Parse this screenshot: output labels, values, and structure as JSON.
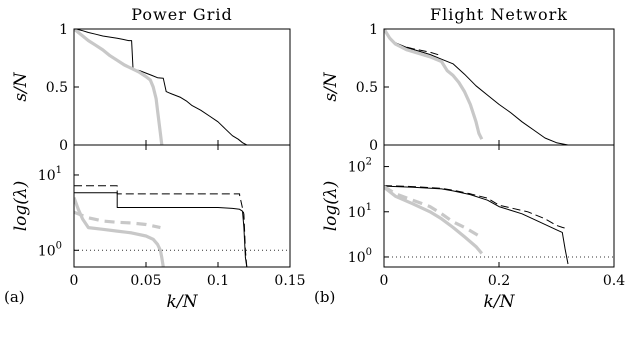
{
  "chart_data": [
    {
      "panel": "(a)",
      "title": "Power Grid",
      "xlabel": "k/N",
      "xlim": [
        0,
        0.15
      ],
      "xticks": [
        "0",
        "0.05",
        "0.1",
        "0.15"
      ],
      "top": {
        "type": "line",
        "ylabel": "s/N",
        "ylim": [
          0,
          1
        ],
        "yticks": [
          "0",
          "0.5",
          "1"
        ],
        "series": [
          {
            "style": "thin-black",
            "x": [
              0,
              0.003,
              0.006,
              0.01,
              0.015,
              0.02,
              0.025,
              0.03,
              0.034,
              0.038,
              0.04,
              0.041,
              0.042,
              0.046,
              0.05,
              0.054,
              0.058,
              0.062,
              0.064,
              0.066,
              0.068,
              0.07,
              0.074,
              0.078,
              0.082,
              0.088,
              0.094,
              0.1,
              0.105,
              0.11,
              0.114,
              0.117,
              0.12,
              0.15
            ],
            "y": [
              1.0,
              0.995,
              0.985,
              0.97,
              0.955,
              0.94,
              0.93,
              0.92,
              0.91,
              0.9,
              0.9,
              0.66,
              0.65,
              0.64,
              0.62,
              0.6,
              0.58,
              0.575,
              0.46,
              0.45,
              0.44,
              0.43,
              0.41,
              0.38,
              0.34,
              0.3,
              0.25,
              0.2,
              0.14,
              0.08,
              0.05,
              0.02,
              0.0,
              0.0
            ]
          },
          {
            "style": "thick-gray",
            "x": [
              0,
              0.005,
              0.01,
              0.015,
              0.02,
              0.025,
              0.03,
              0.035,
              0.04,
              0.045,
              0.05,
              0.053,
              0.055,
              0.057,
              0.058,
              0.06,
              0.061
            ],
            "y": [
              1.0,
              0.95,
              0.9,
              0.86,
              0.82,
              0.77,
              0.73,
              0.69,
              0.66,
              0.63,
              0.59,
              0.56,
              0.5,
              0.4,
              0.3,
              0.1,
              0.0
            ]
          }
        ]
      },
      "bottom": {
        "type": "line",
        "ylabel": "log(λ)",
        "yscale": "log",
        "ylim": [
          0.6,
          25
        ],
        "yticks": [
          {
            "base": "10",
            "exp": "0",
            "value": 1
          },
          {
            "base": "10",
            "exp": "1",
            "value": 10
          }
        ],
        "series": [
          {
            "style": "dashed-black",
            "x": [
              0,
              0.03,
              0.03,
              0.115,
              0.115,
              0.118,
              0.119,
              0.12
            ],
            "y": [
              7.2,
              7.2,
              5.6,
              5.6,
              5.4,
              3.0,
              1.0,
              0.6
            ]
          },
          {
            "style": "thin-black",
            "x": [
              0,
              0.03,
              0.03,
              0.04,
              0.06,
              0.08,
              0.1,
              0.11,
              0.115,
              0.117,
              0.118,
              0.119,
              0.12
            ],
            "y": [
              5.8,
              5.8,
              3.7,
              3.7,
              3.7,
              3.7,
              3.7,
              3.6,
              3.5,
              3.3,
              2.0,
              0.8,
              0.6
            ]
          },
          {
            "style": "dashed-gray",
            "x": [
              0,
              0.01,
              0.02,
              0.03,
              0.04,
              0.05,
              0.06
            ],
            "y": [
              3.2,
              2.7,
              2.45,
              2.35,
              2.3,
              2.2,
              2.0
            ]
          },
          {
            "style": "thick-gray",
            "x": [
              0,
              0.003,
              0.006,
              0.01,
              0.02,
              0.03,
              0.04,
              0.05,
              0.055,
              0.058,
              0.06,
              0.061,
              0.062
            ],
            "y": [
              5.0,
              3.5,
              2.6,
              2.0,
              1.9,
              1.8,
              1.7,
              1.55,
              1.4,
              1.2,
              1.0,
              0.8,
              0.6
            ]
          },
          {
            "style": "dotted-black",
            "x": [
              0,
              0.15
            ],
            "y": [
              1.0,
              1.0
            ]
          }
        ]
      }
    },
    {
      "panel": "(b)",
      "title": "Flight Network",
      "xlabel": "k/N",
      "xlim": [
        0,
        0.4
      ],
      "xticks": [
        "0",
        "0.2",
        "0.4"
      ],
      "top": {
        "type": "line",
        "ylabel": "s/N",
        "ylim": [
          0,
          1
        ],
        "yticks": [
          "0",
          "0.5",
          "1"
        ],
        "series": [
          {
            "style": "thin-black",
            "x": [
              0,
              0.005,
              0.01,
              0.02,
              0.04,
              0.06,
              0.08,
              0.1,
              0.12,
              0.14,
              0.16,
              0.18,
              0.2,
              0.22,
              0.24,
              0.26,
              0.28,
              0.3,
              0.32
            ],
            "y": [
              1.0,
              0.96,
              0.92,
              0.88,
              0.84,
              0.81,
              0.78,
              0.74,
              0.7,
              0.61,
              0.51,
              0.43,
              0.35,
              0.28,
              0.2,
              0.13,
              0.06,
              0.02,
              0.0
            ]
          },
          {
            "style": "dashed-black",
            "x": [
              0.02,
              0.05,
              0.08,
              0.1
            ],
            "y": [
              0.87,
              0.83,
              0.8,
              0.77
            ]
          },
          {
            "style": "thick-gray",
            "x": [
              0,
              0.005,
              0.01,
              0.02,
              0.04,
              0.06,
              0.08,
              0.1,
              0.11,
              0.12,
              0.13,
              0.14,
              0.15,
              0.16,
              0.165,
              0.17
            ],
            "y": [
              1.0,
              0.96,
              0.92,
              0.87,
              0.82,
              0.79,
              0.76,
              0.72,
              0.64,
              0.6,
              0.54,
              0.46,
              0.35,
              0.2,
              0.1,
              0.05
            ]
          }
        ]
      },
      "bottom": {
        "type": "line",
        "ylabel": "log(λ)",
        "yscale": "log",
        "ylim": [
          0.6,
          300
        ],
        "yticks": [
          {
            "base": "10",
            "exp": "0",
            "value": 1
          },
          {
            "base": "10",
            "exp": "1",
            "value": 10
          },
          {
            "base": "10",
            "exp": "2",
            "value": 100
          }
        ],
        "series": [
          {
            "style": "dashed-black",
            "x": [
              0,
              0.05,
              0.1,
              0.12,
              0.15,
              0.18,
              0.2,
              0.25,
              0.28,
              0.3,
              0.31,
              0.32
            ],
            "y": [
              38,
              36,
              33,
              30,
              25,
              20,
              14,
              10,
              7,
              5,
              4.5,
              4.2
            ]
          },
          {
            "style": "thin-black",
            "x": [
              0,
              0.05,
              0.1,
              0.12,
              0.15,
              0.18,
              0.2,
              0.24,
              0.27,
              0.3,
              0.31,
              0.315,
              0.32
            ],
            "y": [
              37,
              35,
              32,
              29,
              24,
              18,
              13,
              9,
              6,
              4,
              3.5,
              1.5,
              0.7
            ]
          },
          {
            "style": "dashed-gray",
            "x": [
              0,
              0.02,
              0.05,
              0.08,
              0.1,
              0.12,
              0.14,
              0.16,
              0.17
            ],
            "y": [
              36,
              25,
              18,
              13,
              9,
              6,
              4.5,
              3.2,
              2.7
            ]
          },
          {
            "style": "thick-gray",
            "x": [
              0,
              0.02,
              0.05,
              0.08,
              0.1,
              0.12,
              0.14,
              0.16,
              0.17
            ],
            "y": [
              35,
              22,
              15,
              10,
              7,
              4.5,
              2.8,
              1.7,
              1.2
            ]
          },
          {
            "style": "dotted-black",
            "x": [
              0,
              0.4
            ],
            "y": [
              1.0,
              1.0
            ]
          }
        ]
      }
    }
  ]
}
